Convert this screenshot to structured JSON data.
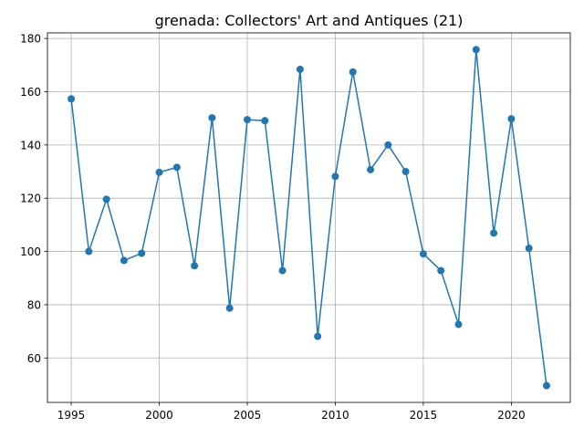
{
  "chart_data": {
    "type": "line",
    "title": "grenada: Collectors' Art and Antiques (21)",
    "xlabel": "",
    "ylabel": "",
    "x": [
      1995,
      1996,
      1997,
      1998,
      1999,
      2000,
      2001,
      2002,
      2003,
      2004,
      2005,
      2006,
      2007,
      2008,
      2009,
      2010,
      2011,
      2012,
      2013,
      2014,
      2015,
      2016,
      2017,
      2018,
      2019,
      2020,
      2021,
      2022
    ],
    "series": [
      {
        "values": [
          157.3,
          100.0,
          119.6,
          96.6,
          99.3,
          129.7,
          131.6,
          94.6,
          150.2,
          78.7,
          149.5,
          149.1,
          92.8,
          168.4,
          68.1,
          128.2,
          167.4,
          130.7,
          140.0,
          130.0,
          99.1,
          92.8,
          72.6,
          175.8,
          106.9,
          149.8,
          101.2,
          49.6
        ],
        "color": "#1f77b4"
      }
    ],
    "xlim": [
      1993.65,
      2023.35
    ],
    "ylim": [
      43.3,
      182.1
    ],
    "xticks": [
      1995,
      2000,
      2005,
      2010,
      2015,
      2020
    ],
    "yticks": [
      60,
      80,
      100,
      120,
      140,
      160,
      180
    ],
    "grid": true
  }
}
